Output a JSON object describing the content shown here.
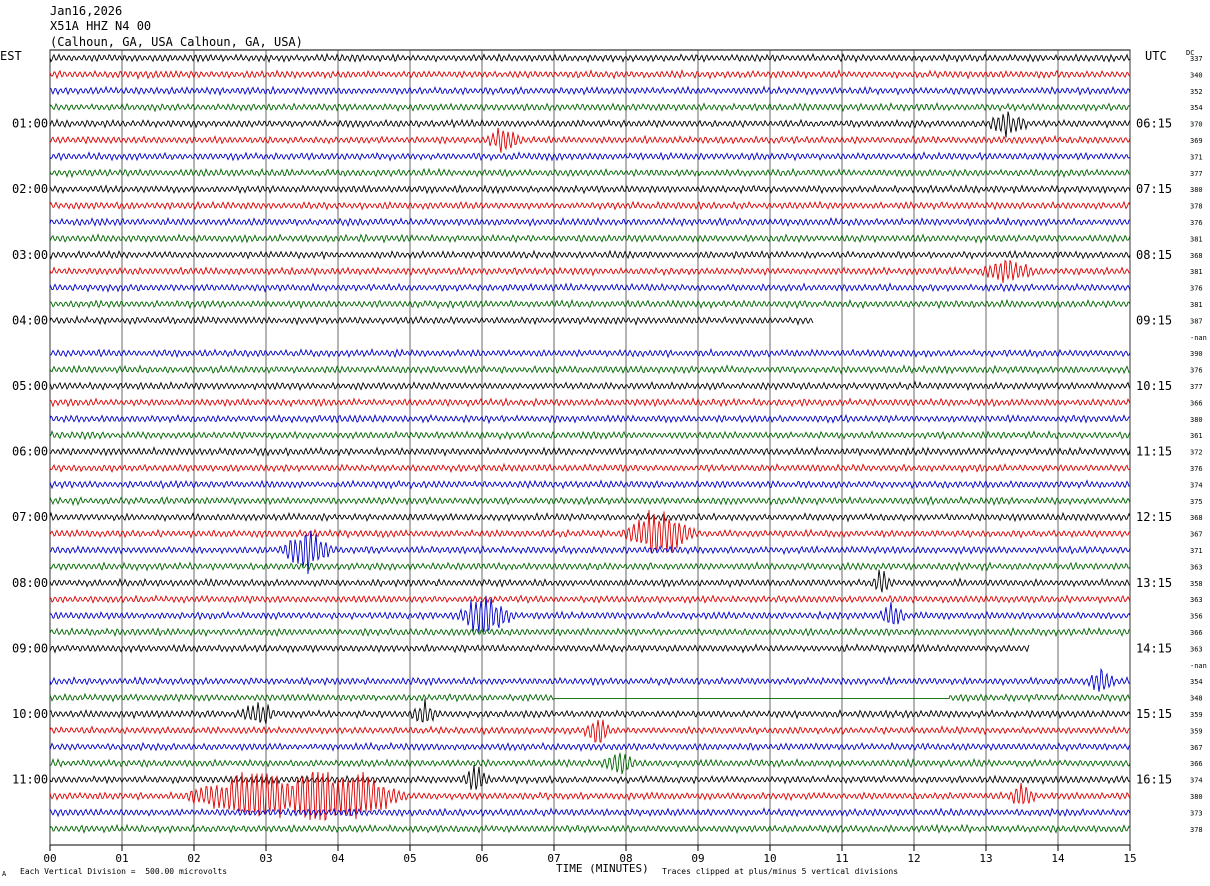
{
  "header": {
    "date": "Jan16,2026",
    "station": "X51A HHZ N4 00",
    "location": "(Calhoun, GA, USA Calhoun, GA, USA)"
  },
  "corner_labels": {
    "left": "EST",
    "right": "UTC",
    "dc": "DC"
  },
  "footer": {
    "vertical_division": "Each Vertical Division =  500.00 microvolts",
    "x_axis_label": "TIME (MINUTES)",
    "clip_note": "Traces clipped at plus/minus 5 vertical divisions",
    "mark": "A"
  },
  "chart_data": {
    "type": "line",
    "title": "",
    "xlabel": "TIME (MINUTES)",
    "xlim": [
      0,
      15
    ],
    "x_ticks": [
      "00",
      "01",
      "02",
      "03",
      "04",
      "05",
      "06",
      "07",
      "08",
      "09",
      "10",
      "11",
      "12",
      "13",
      "14",
      "15"
    ],
    "left_time_labels": [
      "01:00",
      "02:00",
      "03:00",
      "04:00",
      "05:00",
      "06:00",
      "07:00",
      "08:00",
      "09:00",
      "10:00",
      "11:00"
    ],
    "right_time_labels": [
      "06:15",
      "07:15",
      "08:15",
      "09:15",
      "10:15",
      "11:15",
      "12:15",
      "13:15",
      "14:15",
      "15:15",
      "16:15"
    ],
    "trace_colors": [
      "#000000",
      "#dd0000",
      "#0000cc",
      "#006600"
    ],
    "rows": [
      {
        "dc": "337",
        "end": 15
      },
      {
        "dc": "340",
        "end": 15
      },
      {
        "dc": "352",
        "end": 15
      },
      {
        "dc": "354",
        "end": 15
      },
      {
        "dc": "370",
        "end": 15
      },
      {
        "dc": "369",
        "end": 15
      },
      {
        "dc": "371",
        "end": 15
      },
      {
        "dc": "377",
        "end": 15
      },
      {
        "dc": "380",
        "end": 15
      },
      {
        "dc": "378",
        "end": 15
      },
      {
        "dc": "376",
        "end": 15
      },
      {
        "dc": "381",
        "end": 15
      },
      {
        "dc": "368",
        "end": 15
      },
      {
        "dc": "381",
        "end": 15
      },
      {
        "dc": "376",
        "end": 15
      },
      {
        "dc": "381",
        "end": 15
      },
      {
        "dc": "387",
        "end": 10.6
      },
      {
        "dc": "-nan",
        "end": 0
      },
      {
        "dc": "390",
        "end": 15
      },
      {
        "dc": "376",
        "end": 15
      },
      {
        "dc": "377",
        "end": 15
      },
      {
        "dc": "366",
        "end": 15
      },
      {
        "dc": "380",
        "end": 15
      },
      {
        "dc": "361",
        "end": 15
      },
      {
        "dc": "372",
        "end": 15
      },
      {
        "dc": "376",
        "end": 15
      },
      {
        "dc": "374",
        "end": 15
      },
      {
        "dc": "375",
        "end": 15
      },
      {
        "dc": "368",
        "end": 15
      },
      {
        "dc": "367",
        "end": 15
      },
      {
        "dc": "371",
        "end": 15
      },
      {
        "dc": "363",
        "end": 15
      },
      {
        "dc": "358",
        "end": 15
      },
      {
        "dc": "363",
        "end": 15
      },
      {
        "dc": "356",
        "end": 15
      },
      {
        "dc": "366",
        "end": 15
      },
      {
        "dc": "363",
        "end": 13.6
      },
      {
        "dc": "-nan",
        "end": 0
      },
      {
        "dc": "354",
        "end": 15
      },
      {
        "dc": "348",
        "end": 15,
        "gap": [
          7,
          12.5
        ]
      },
      {
        "dc": "359",
        "end": 15
      },
      {
        "dc": "359",
        "end": 15
      },
      {
        "dc": "367",
        "end": 15
      },
      {
        "dc": "366",
        "end": 15
      },
      {
        "dc": "374",
        "end": 15
      },
      {
        "dc": "380",
        "end": 15
      },
      {
        "dc": "373",
        "end": 15
      },
      {
        "dc": "378",
        "end": 15
      }
    ],
    "events": [
      {
        "row": 5,
        "x": 6.3,
        "amp": 1.6,
        "dur": 0.5
      },
      {
        "row": 30,
        "x": 3.55,
        "amp": 2.6,
        "dur": 0.8
      },
      {
        "row": 29,
        "x": 8.45,
        "amp": 2.8,
        "dur": 1.1
      },
      {
        "row": 34,
        "x": 6.05,
        "amp": 2.8,
        "dur": 0.8
      },
      {
        "row": 32,
        "x": 11.55,
        "amp": 1.6,
        "dur": 0.3
      },
      {
        "row": 34,
        "x": 11.7,
        "amp": 1.6,
        "dur": 0.4
      },
      {
        "row": 38,
        "x": 14.6,
        "amp": 1.6,
        "dur": 0.4
      },
      {
        "row": 41,
        "x": 7.6,
        "amp": 1.6,
        "dur": 0.4
      },
      {
        "row": 43,
        "x": 7.9,
        "amp": 1.4,
        "dur": 0.5
      },
      {
        "row": 44,
        "x": 5.9,
        "amp": 1.8,
        "dur": 0.4
      },
      {
        "row": 45,
        "x": 2.9,
        "amp": 3.0,
        "dur": 2.2
      },
      {
        "row": 45,
        "x": 4.2,
        "amp": 3.0,
        "dur": 1.6
      },
      {
        "row": 45,
        "x": 13.5,
        "amp": 1.6,
        "dur": 0.4
      },
      {
        "row": 40,
        "x": 2.9,
        "amp": 1.3,
        "dur": 0.5
      },
      {
        "row": 40,
        "x": 5.2,
        "amp": 1.3,
        "dur": 0.4
      },
      {
        "row": 13,
        "x": 13.3,
        "amp": 1.3,
        "dur": 0.8
      },
      {
        "row": 4,
        "x": 13.3,
        "amp": 1.3,
        "dur": 0.6
      }
    ]
  }
}
